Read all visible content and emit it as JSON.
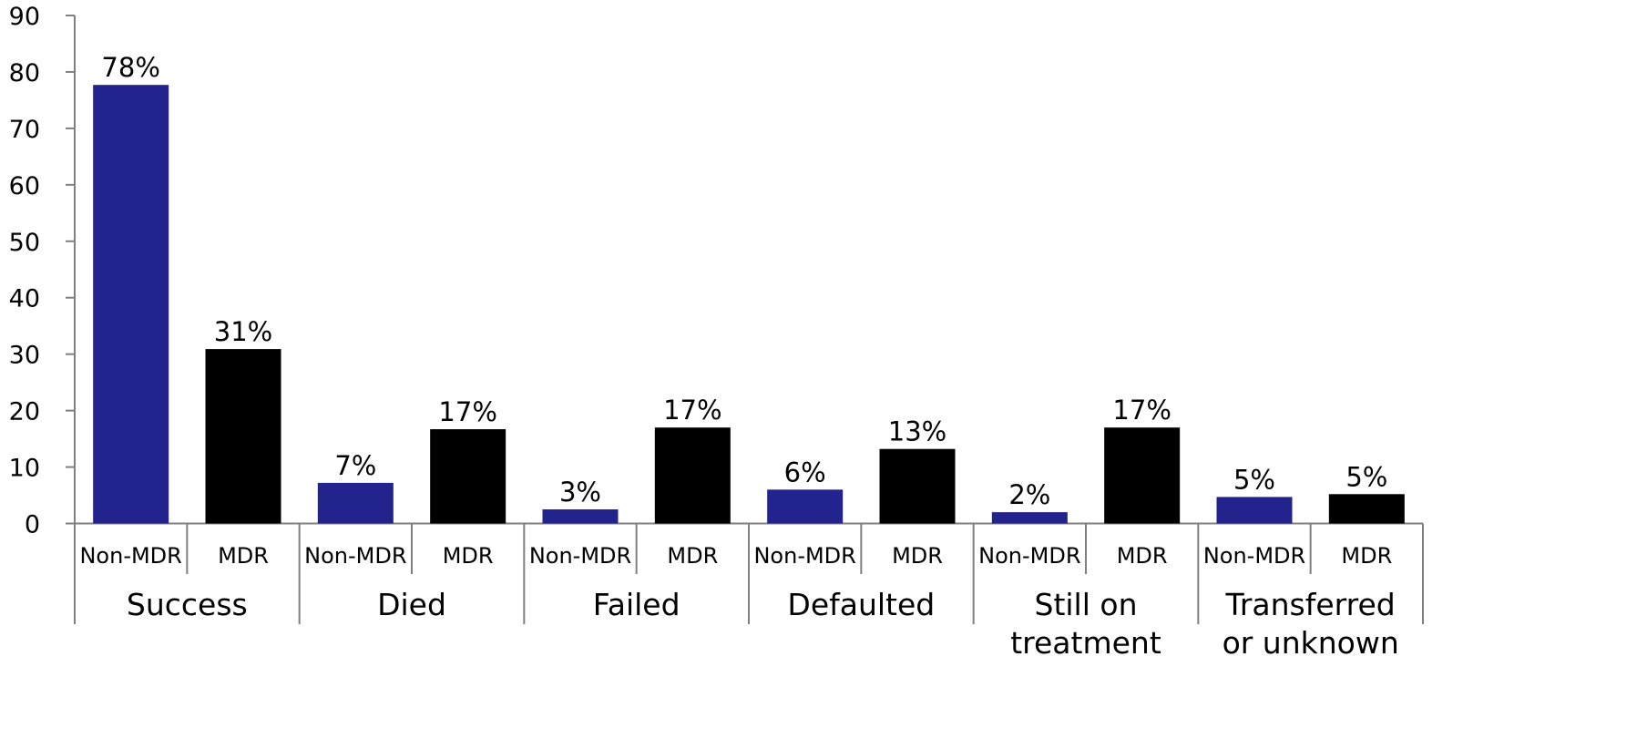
{
  "chart_data": {
    "type": "bar",
    "groups": [
      "Success",
      "Died",
      "Failed",
      "Defaulted",
      "Still on treatment",
      "Transferred or unknown"
    ],
    "group_label_lines": [
      [
        "Success"
      ],
      [
        "Died"
      ],
      [
        "Failed"
      ],
      [
        "Defaulted"
      ],
      [
        "Still on",
        "treatment"
      ],
      [
        "Transferred",
        "or unknown"
      ]
    ],
    "subcategories": [
      "Non-MDR",
      "MDR"
    ],
    "values": [
      [
        77.7,
        30.9
      ],
      [
        7.2,
        16.7
      ],
      [
        2.5,
        17.0
      ],
      [
        6.0,
        13.2
      ],
      [
        2.0,
        17.0
      ],
      [
        4.7,
        5.2
      ]
    ],
    "data_labels": [
      [
        "78%",
        "31%"
      ],
      [
        "7%",
        "17%"
      ],
      [
        "3%",
        "17%"
      ],
      [
        "6%",
        "13%"
      ],
      [
        "2%",
        "17%"
      ],
      [
        "5%",
        "5%"
      ]
    ],
    "yticks": [
      "0",
      "10",
      "20",
      "30",
      "40",
      "50",
      "60",
      "70",
      "80",
      "90"
    ],
    "ylim": [
      0,
      90
    ],
    "colors": {
      "Non-MDR": "#23238e",
      "MDR": "#000000"
    },
    "grid": false,
    "legend": "none"
  }
}
